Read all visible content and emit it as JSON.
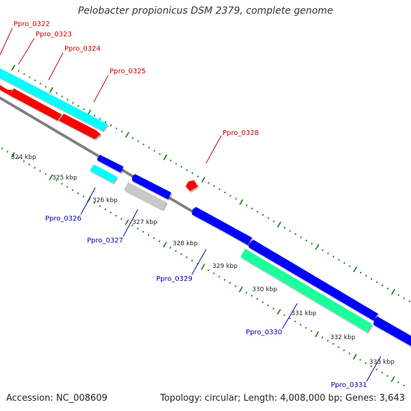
{
  "header": {
    "title": "Pelobacter propionicus DSM 2379, complete genome"
  },
  "footer": {
    "accession": "Accession: NC_008609",
    "topology": "Topology: circular; Length: 4,008,000 bp; Genes: 3,643"
  },
  "colors": {
    "backbone": "#808080",
    "tick": "#1a8a1a",
    "label_text": "#222222",
    "forward_label": "#cc0000",
    "reverse_label": "#0000aa",
    "red": "#ff0000",
    "cyan": "#00ffff",
    "blue": "#0000ff",
    "grey": "#c8c8c8",
    "teal": "#1aff9c"
  },
  "scale_labels": [
    "324 kbp",
    "325 kbp",
    "326 kbp",
    "327 kbp",
    "328 kbp",
    "329 kbp",
    "330 kbp",
    "331 kbp",
    "332 kbp",
    "333 kbp"
  ],
  "genes": [
    {
      "id": "Ppro_0322",
      "strand": "forward",
      "color": "red"
    },
    {
      "id": "Ppro_0323",
      "strand": "forward",
      "color": "cyan"
    },
    {
      "id": "Ppro_0324",
      "strand": "forward",
      "color": "red"
    },
    {
      "id": "Ppro_0325",
      "strand": "forward",
      "color": "red"
    },
    {
      "id": "Ppro_0328",
      "strand": "forward",
      "color": "red"
    },
    {
      "id": "Ppro_0326",
      "strand": "reverse",
      "color": "cyan"
    },
    {
      "id": "Ppro_0327",
      "strand": "reverse",
      "color": "grey"
    },
    {
      "id": "Ppro_0329",
      "strand": "reverse",
      "color": "blue"
    },
    {
      "id": "Ppro_0330",
      "strand": "reverse",
      "color": "teal"
    },
    {
      "id": "Ppro_0331",
      "strand": "reverse",
      "color": "blue"
    }
  ]
}
